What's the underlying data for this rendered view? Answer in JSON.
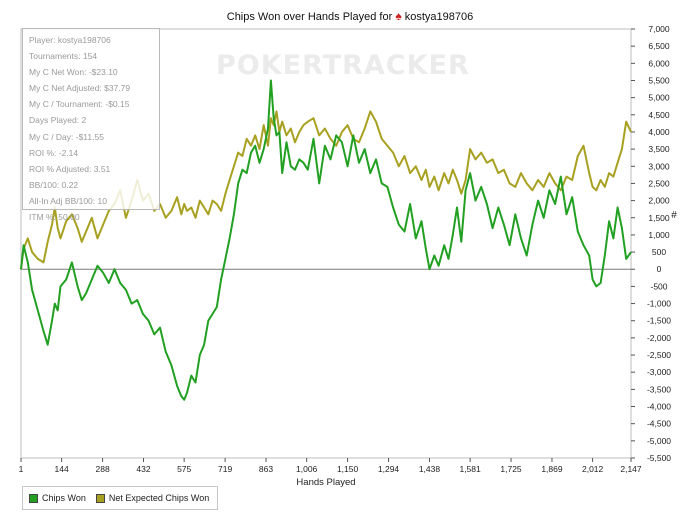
{
  "chart_data": {
    "type": "line",
    "title": "Chips Won over Hands Played for",
    "player_icon": "spade-icon",
    "player_name": "kostya198706",
    "xlabel": "Hands Played",
    "ylabel": "#",
    "xlim": [
      1,
      2147
    ],
    "ylim": [
      -5500,
      7000
    ],
    "x_ticks": [
      1,
      144,
      288,
      432,
      575,
      719,
      863,
      1006,
      1150,
      1294,
      1438,
      1581,
      1725,
      1869,
      2012,
      2147
    ],
    "x_tick_labels": [
      "1",
      "144",
      "288",
      "432",
      "575",
      "719",
      "863",
      "1,006",
      "1,150",
      "1,294",
      "1,438",
      "1,581",
      "1,725",
      "1,869",
      "2,012",
      "2,147"
    ],
    "y_ticks": [
      7000,
      6500,
      6000,
      5500,
      5000,
      4500,
      4000,
      3500,
      3000,
      2500,
      2000,
      1500,
      1000,
      500,
      0,
      -500,
      -1000,
      -1500,
      -2000,
      -2500,
      -3000,
      -3500,
      -4000,
      -4500,
      -5000,
      -5500
    ],
    "y_tick_labels": [
      "7,000",
      "6,500",
      "6,000",
      "5,500",
      "5,000",
      "4,500",
      "4,000",
      "3,500",
      "3,000",
      "2,500",
      "2,000",
      "1,500",
      "1,000",
      "500",
      "0",
      "-500",
      "-1,000",
      "-1,500",
      "-2,000",
      "-2,500",
      "-3,000",
      "-3,500",
      "-4,000",
      "-4,500",
      "-5,000",
      "-5,500"
    ],
    "series": [
      {
        "name": "Chips Won",
        "color": "#22a022",
        "x": [
          1,
          10,
          25,
          40,
          60,
          80,
          95,
          110,
          120,
          130,
          140,
          160,
          180,
          200,
          215,
          230,
          250,
          270,
          290,
          310,
          330,
          350,
          370,
          390,
          410,
          430,
          450,
          470,
          490,
          510,
          530,
          550,
          565,
          575,
          585,
          600,
          615,
          630,
          645,
          660,
          675,
          690,
          705,
          720,
          735,
          750,
          765,
          780,
          795,
          810,
          825,
          840,
          855,
          870,
          880,
          890,
          900,
          910,
          920,
          935,
          950,
          965,
          980,
          995,
          1010,
          1030,
          1050,
          1070,
          1090,
          1110,
          1130,
          1150,
          1170,
          1190,
          1210,
          1230,
          1250,
          1270,
          1290,
          1310,
          1330,
          1350,
          1370,
          1390,
          1410,
          1425,
          1438,
          1455,
          1470,
          1490,
          1505,
          1520,
          1535,
          1550,
          1565,
          1581,
          1600,
          1620,
          1640,
          1660,
          1680,
          1700,
          1720,
          1740,
          1760,
          1780,
          1800,
          1820,
          1840,
          1860,
          1880,
          1900,
          1920,
          1940,
          1960,
          1980,
          2000,
          2012,
          2025,
          2040,
          2055,
          2070,
          2085,
          2100,
          2115,
          2130,
          2147
        ],
        "y": [
          0,
          700,
          200,
          -600,
          -1200,
          -1800,
          -2200,
          -1500,
          -1000,
          -1200,
          -500,
          -300,
          200,
          -500,
          -900,
          -700,
          -300,
          100,
          -100,
          -400,
          0,
          -400,
          -600,
          -1000,
          -900,
          -1300,
          -1500,
          -1900,
          -1700,
          -2400,
          -2800,
          -3400,
          -3700,
          -3800,
          -3600,
          -3100,
          -3300,
          -2500,
          -2200,
          -1500,
          -1300,
          -1100,
          -300,
          300,
          900,
          1600,
          2500,
          2900,
          2800,
          3400,
          3600,
          3100,
          3500,
          4100,
          5500,
          4400,
          3900,
          4000,
          2800,
          3700,
          3000,
          2900,
          3200,
          3100,
          2900,
          3800,
          2500,
          3600,
          3200,
          3900,
          3700,
          3000,
          3900,
          3100,
          3500,
          2800,
          3200,
          2500,
          2400,
          1800,
          1300,
          1100,
          1900,
          900,
          1400,
          600,
          0,
          400,
          100,
          700,
          300,
          1000,
          1800,
          800,
          2300,
          2800,
          2000,
          2400,
          1900,
          1200,
          1800,
          1300,
          700,
          1600,
          900,
          400,
          1300,
          2000,
          1500,
          2300,
          1900,
          2700,
          1600,
          2100,
          1100,
          700,
          400,
          -300,
          -500,
          -400,
          400,
          1400,
          900,
          1800,
          1200,
          300,
          500
        ],
        "line_style": "solid"
      },
      {
        "name": "Net Expected Chips Won",
        "color": "#a8a020",
        "x": [
          1,
          10,
          25,
          40,
          60,
          80,
          95,
          110,
          120,
          130,
          140,
          160,
          180,
          200,
          215,
          230,
          250,
          270,
          290,
          310,
          330,
          350,
          370,
          390,
          410,
          430,
          450,
          470,
          490,
          510,
          530,
          550,
          565,
          575,
          585,
          600,
          615,
          630,
          645,
          660,
          675,
          690,
          705,
          720,
          735,
          750,
          765,
          780,
          795,
          810,
          825,
          840,
          855,
          870,
          880,
          890,
          900,
          910,
          920,
          935,
          950,
          965,
          980,
          995,
          1010,
          1030,
          1050,
          1070,
          1090,
          1110,
          1130,
          1150,
          1170,
          1190,
          1210,
          1230,
          1250,
          1270,
          1290,
          1310,
          1330,
          1350,
          1370,
          1390,
          1410,
          1425,
          1438,
          1455,
          1470,
          1490,
          1505,
          1520,
          1535,
          1550,
          1565,
          1581,
          1600,
          1620,
          1640,
          1660,
          1680,
          1700,
          1720,
          1740,
          1760,
          1780,
          1800,
          1820,
          1840,
          1860,
          1880,
          1900,
          1920,
          1940,
          1960,
          1980,
          2000,
          2012,
          2025,
          2040,
          2055,
          2070,
          2085,
          2100,
          2115,
          2130,
          2147
        ],
        "y": [
          0,
          600,
          900,
          500,
          300,
          200,
          800,
          1300,
          1800,
          1200,
          900,
          1400,
          1600,
          1200,
          800,
          1100,
          1500,
          900,
          1300,
          1700,
          1900,
          2300,
          1500,
          2000,
          2600,
          2000,
          2200,
          1700,
          1900,
          1500,
          1700,
          2100,
          1600,
          1900,
          1700,
          1800,
          1500,
          2000,
          1800,
          1600,
          2000,
          1900,
          1700,
          2200,
          2600,
          3000,
          3400,
          3300,
          3800,
          3600,
          3900,
          3500,
          4200,
          3600,
          4400,
          4200,
          4600,
          4000,
          4300,
          3900,
          4100,
          3700,
          4000,
          4200,
          4300,
          4400,
          3900,
          4100,
          3800,
          3600,
          4000,
          4200,
          3800,
          3700,
          4100,
          4600,
          4300,
          3800,
          3600,
          3400,
          3000,
          3300,
          2800,
          3000,
          2600,
          2900,
          2400,
          2700,
          2300,
          2800,
          2500,
          2900,
          2600,
          2200,
          2600,
          3500,
          3200,
          3400,
          3100,
          3200,
          2800,
          2900,
          2500,
          2400,
          2800,
          2500,
          2300,
          2600,
          2400,
          2800,
          2500,
          2300,
          2700,
          2600,
          3300,
          3600,
          2800,
          2400,
          2300,
          2600,
          2400,
          2800,
          2700,
          3100,
          3500,
          4300,
          4000
        ]
      }
    ]
  },
  "stats": [
    "Player: kostya198706",
    "Tournaments: 154",
    "My C Net Won: -$23.10",
    "My C Net Adjusted: $37.79",
    "My C / Tournament: -$0.15",
    "Days Played: 2",
    "My C / Day: -$11.55",
    "ROI %: -2.14",
    "ROI % Adjusted: 3.51",
    "BB/100: 0.22",
    "All-In Adj BB/100: 10",
    "ITM %: 50.00"
  ],
  "watermark": "POKERTRACKER"
}
